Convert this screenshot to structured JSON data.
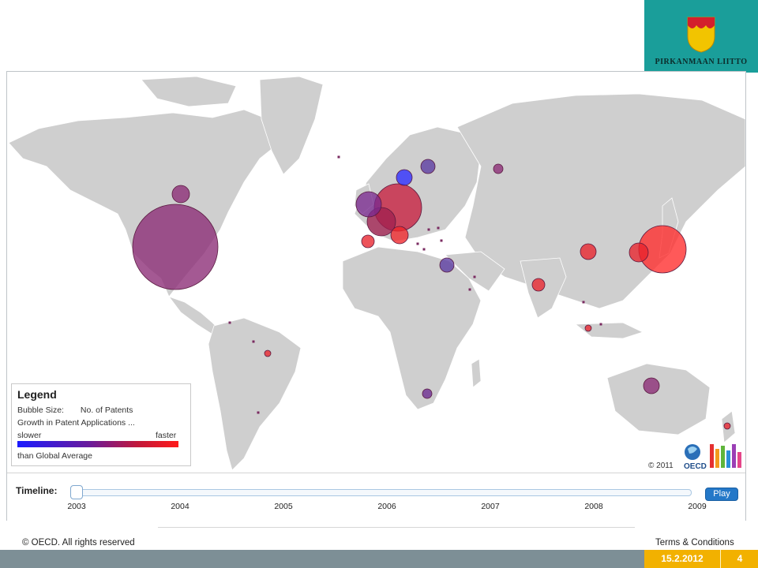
{
  "brand": {
    "name": "Pirkanmaan liitto",
    "logo_icon": "crest-shield-icon"
  },
  "map": {
    "land_color": "#cfcfcf",
    "bubble_colors": {
      "slower": "#1a1aff",
      "faster": "#ff1a1a"
    },
    "bubbles": [
      {
        "place": "United States",
        "color": "#8a2a74",
        "size": "largest"
      },
      {
        "place": "Canada",
        "color": "#8a2a74",
        "size": "small"
      },
      {
        "place": "Japan",
        "color": "#ff2a2a",
        "size": "very large"
      },
      {
        "place": "Korea",
        "color": "#e8232c",
        "size": "medium"
      },
      {
        "place": "China",
        "color": "#e8232c",
        "size": "small"
      },
      {
        "place": "India",
        "color": "#e8232c",
        "size": "small"
      },
      {
        "place": "Germany",
        "color": "#c71e3e",
        "size": "large"
      },
      {
        "place": "France",
        "color": "#a02050",
        "size": "medium"
      },
      {
        "place": "United Kingdom",
        "color": "#7a2a90",
        "size": "medium"
      },
      {
        "place": "Italy",
        "color": "#f0262a",
        "size": "small"
      },
      {
        "place": "Spain",
        "color": "#e8232c",
        "size": "small"
      },
      {
        "place": "Sweden",
        "color": "#2b2bff",
        "size": "small"
      },
      {
        "place": "Finland",
        "color": "#5a3aa0",
        "size": "small"
      },
      {
        "place": "Russia",
        "color": "#8a2a74",
        "size": "small"
      },
      {
        "place": "Israel",
        "color": "#5a3aa0",
        "size": "small"
      },
      {
        "place": "Australia",
        "color": "#8a2a74",
        "size": "small"
      },
      {
        "place": "South Africa",
        "color": "#6a2a90",
        "size": "small"
      },
      {
        "place": "Brazil",
        "color": "#e8232c",
        "size": "tiny"
      },
      {
        "place": "Singapore",
        "color": "#e8232c",
        "size": "tiny"
      },
      {
        "place": "New Zealand",
        "color": "#e8232c",
        "size": "tiny"
      }
    ]
  },
  "legend": {
    "title": "Legend",
    "bubble_size_label": "Bubble Size:",
    "bubble_size_value": "No. of Patents",
    "growth_label": "Growth in Patent Applications ...",
    "slower": "slower",
    "faster": "faster",
    "relative_to": "than Global Average"
  },
  "copyright_map": "© 2011",
  "oecd_logo_text": "OECD",
  "timeline": {
    "label": "Timeline:",
    "years": [
      "2003",
      "2004",
      "2005",
      "2006",
      "2007",
      "2008",
      "2009"
    ],
    "position": 0,
    "play_label": "Play"
  },
  "footer": {
    "left": "© OECD. All rights reserved",
    "right": "Terms & Conditions"
  },
  "bottom_bar": {
    "date": "15.2.2012",
    "page": "4"
  }
}
